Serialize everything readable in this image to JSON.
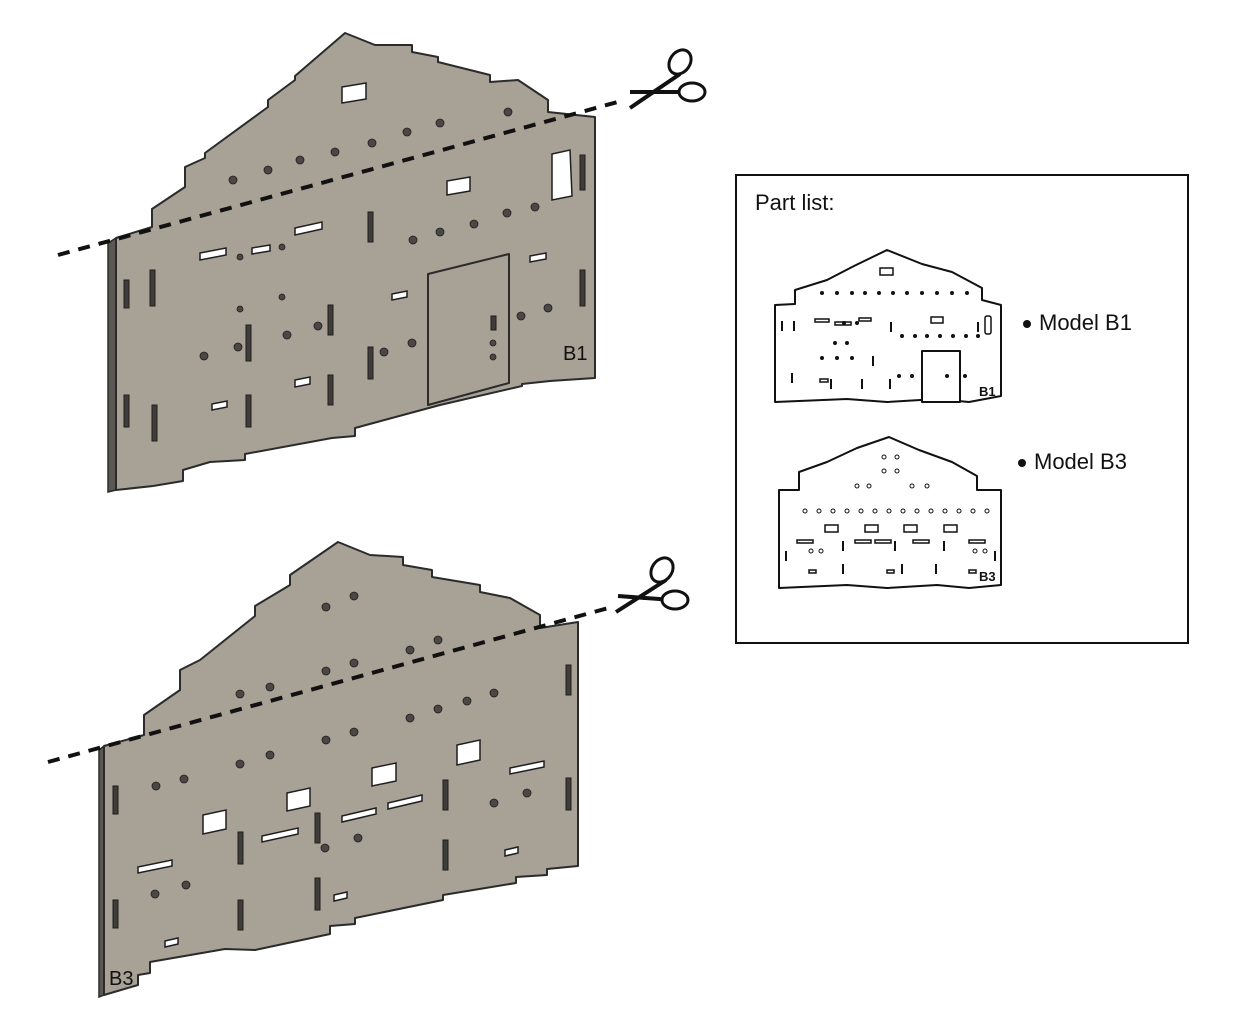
{
  "part_list": {
    "title": "Part list:",
    "items": [
      {
        "label": "Model B1"
      },
      {
        "label": "Model B3"
      }
    ]
  },
  "panels": [
    {
      "label": "B1"
    },
    {
      "label": "B3"
    }
  ],
  "icons": [
    "scissors-icon",
    "scissors-icon"
  ]
}
